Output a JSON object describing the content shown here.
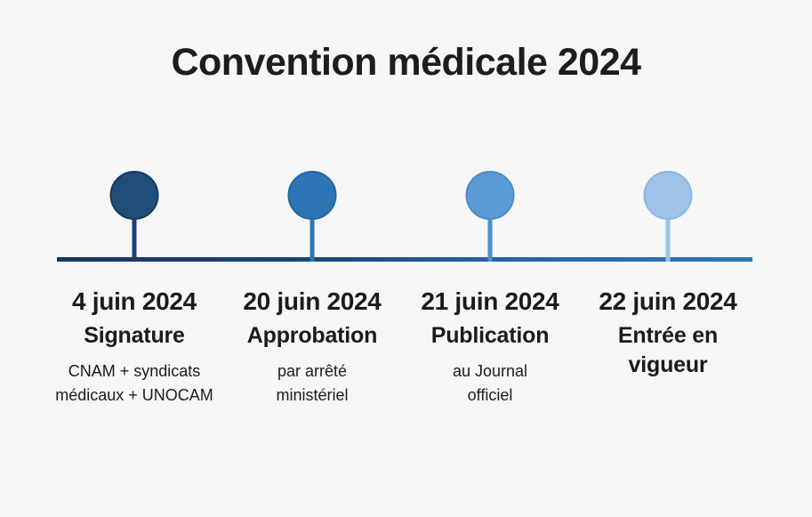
{
  "title": "Convention médicale 2024",
  "theme": {
    "background": "#f7f7f8",
    "title_color": "#1d1d1f",
    "text_color": "#1b1b1d",
    "line_gradient": [
      "#16365f",
      "#1b4372",
      "#2767a5",
      "#2e75b6"
    ]
  },
  "timeline": {
    "milestones": [
      {
        "date": "4 juin 2024",
        "label": "Signature",
        "detail": "CNAM + syndicats\nmédicaux + UNOCAM",
        "color": "#1f4e79",
        "stroke_color": "#153a61",
        "stem_color": "#1d3f6e"
      },
      {
        "date": "20 juin 2024",
        "label": "Approbation",
        "detail": "par arrêté\nministériel",
        "color": "#2e75b6",
        "stroke_color": "#2565a1",
        "stem_color": "#2e75b6"
      },
      {
        "date": "21 juin 2024",
        "label": "Publication",
        "detail": "au Journal\nofficiel",
        "color": "#5b9bd5",
        "stroke_color": "#4a8bc4",
        "stem_color": "#4a90ca"
      },
      {
        "date": "22 juin 2024",
        "label": "Entrée en\nvigueur",
        "detail": "",
        "color": "#9dc3e6",
        "stroke_color": "#8cb8e0",
        "stem_color": "#9dc3e6"
      }
    ]
  }
}
